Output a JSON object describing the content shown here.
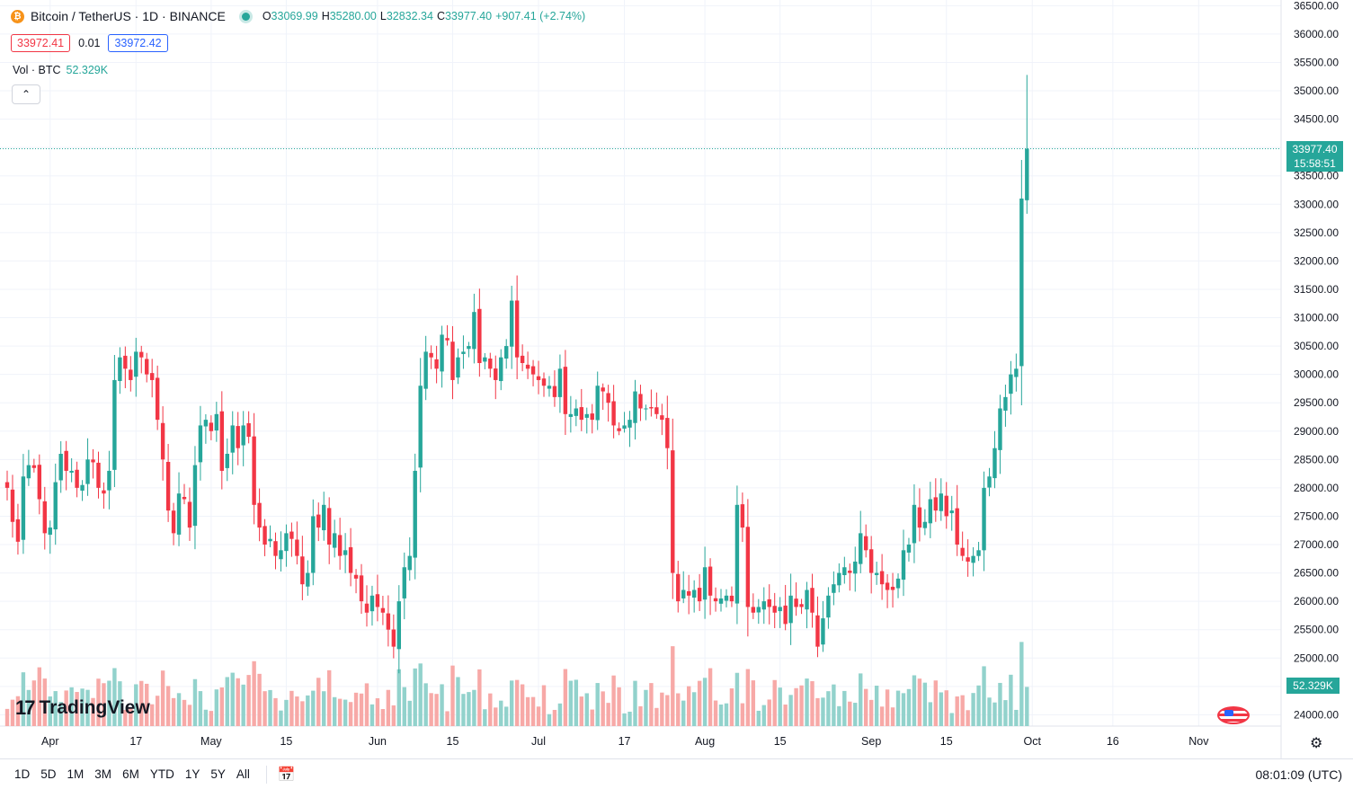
{
  "legend": {
    "symbol": "Bitcoin / TetherUS · 1D · BINANCE",
    "open_label": "O",
    "open": "33069.99",
    "high_label": "H",
    "high": "35280.00",
    "low_label": "L",
    "low": "32832.34",
    "close_label": "C",
    "close": "33977.40",
    "change": "+907.41 (+2.74%)",
    "coin_glyph": "₿"
  },
  "trade": {
    "sell": "33972.41",
    "spread": "0.01",
    "buy": "33972.42"
  },
  "volume": {
    "label": "Vol · BTC",
    "value": "52.329K"
  },
  "collapse_icon": "chevron-up-icon",
  "price_tag": {
    "price": "33977.40",
    "countdown": "15:58:51"
  },
  "volume_tag": "52.329K",
  "logo_text": "TradingView",
  "logo_mark": "17",
  "time_ranges": [
    "1D",
    "5D",
    "1M",
    "3M",
    "6M",
    "YTD",
    "1Y",
    "5Y",
    "All"
  ],
  "clock": "08:01:09 (UTC)",
  "colors": {
    "up": "#26a69a",
    "down": "#f23645",
    "up_vol": "#92d2cc",
    "down_vol": "#f7a9a7",
    "grid": "#f0f3fa"
  },
  "chart_data": {
    "type": "candlestick",
    "symbol": "BTCUSDT",
    "timeframe": "1D",
    "y_ticks": [
      24000,
      24500,
      25000,
      25500,
      26000,
      26500,
      27000,
      27500,
      28000,
      28500,
      29000,
      29500,
      30000,
      30500,
      31000,
      31500,
      32000,
      32500,
      33000,
      33500,
      34000,
      34500,
      35000,
      35500,
      36000,
      36500
    ],
    "ylim": [
      23800,
      36600
    ],
    "x_labels": [
      {
        "text": "Apr",
        "day": 8
      },
      {
        "text": "17",
        "day": 24
      },
      {
        "text": "May",
        "day": 38
      },
      {
        "text": "15",
        "day": 52
      },
      {
        "text": "Jun",
        "day": 69
      },
      {
        "text": "15",
        "day": 83
      },
      {
        "text": "Jul",
        "day": 99
      },
      {
        "text": "17",
        "day": 115
      },
      {
        "text": "Aug",
        "day": 130
      },
      {
        "text": "15",
        "day": 144
      },
      {
        "text": "Sep",
        "day": 161
      },
      {
        "text": "15",
        "day": 175
      },
      {
        "text": "Oct",
        "day": 191
      },
      {
        "text": "16",
        "day": 206
      },
      {
        "text": "Nov",
        "day": 222
      }
    ],
    "last_price": 33977.4,
    "closes": [
      28000,
      27400,
      27050,
      28200,
      28400,
      28350,
      27800,
      27200,
      27300,
      28100,
      28600,
      28300,
      28300,
      28000,
      28050,
      28500,
      28450,
      28000,
      27900,
      28300,
      29900,
      30300,
      30100,
      29900,
      30400,
      30300,
      30000,
      29900,
      29200,
      28500,
      27600,
      27200,
      27900,
      27800,
      27300,
      28400,
      29100,
      29200,
      29000,
      29300,
      28300,
      28600,
      29100,
      28700,
      29100,
      28900,
      27700,
      27300,
      27000,
      27100,
      26800,
      26900,
      27200,
      27100,
      26800,
      26300,
      26500,
      27500,
      27300,
      27700,
      27000,
      27200,
      26800,
      26900,
      26500,
      26400,
      26000,
      25800,
      26100,
      25900,
      25800,
      25500,
      25200,
      26000,
      26600,
      26800,
      28300,
      29800,
      30400,
      30300,
      30100,
      30700,
      30600,
      29900,
      30300,
      30400,
      30500,
      31100,
      30200,
      30300,
      30100,
      29900,
      30300,
      30500,
      31300,
      30300,
      30200,
      30100,
      30000,
      29900,
      29800,
      29800,
      29600,
      30100,
      29300,
      29300,
      29400,
      29200,
      29300,
      29200,
      29800,
      29700,
      29500,
      29100,
      29000,
      29100,
      29200,
      29700,
      29400,
      29400,
      29400,
      29300,
      29200,
      28700,
      26500,
      26000,
      26200,
      26100,
      26200,
      26000,
      26600,
      26100,
      26000,
      26050,
      26100,
      26000,
      27700,
      27300,
      25900,
      25800,
      25900,
      26000,
      25900,
      25800,
      25900,
      25600,
      26100,
      25900,
      25900,
      26200,
      25800,
      25200,
      25700,
      26100,
      26300,
      26500,
      26600,
      26500,
      26700,
      27200,
      26900,
      26500,
      26500,
      26300,
      26200,
      26200,
      26400,
      26900,
      27000,
      27700,
      27300,
      27400,
      27800,
      27600,
      27900,
      27500,
      27600,
      27000,
      26800,
      26700,
      26800,
      26900,
      28000,
      28200,
      28700,
      29400,
      29600,
      30000,
      30100,
      33100,
      33977
    ]
  }
}
